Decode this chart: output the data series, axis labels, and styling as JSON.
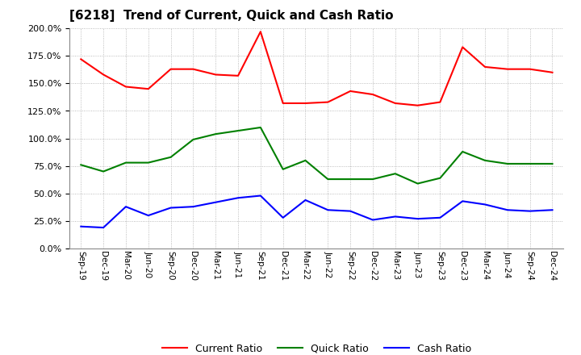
{
  "title": "[6218]  Trend of Current, Quick and Cash Ratio",
  "labels": [
    "Sep-19",
    "Dec-19",
    "Mar-20",
    "Jun-20",
    "Sep-20",
    "Dec-20",
    "Mar-21",
    "Jun-21",
    "Sep-21",
    "Dec-21",
    "Mar-22",
    "Jun-22",
    "Sep-22",
    "Dec-22",
    "Mar-23",
    "Jun-23",
    "Sep-23",
    "Dec-23",
    "Mar-24",
    "Jun-24",
    "Sep-24",
    "Dec-24"
  ],
  "current_ratio": [
    172,
    158,
    147,
    145,
    163,
    163,
    158,
    157,
    197,
    132,
    132,
    133,
    143,
    140,
    132,
    130,
    133,
    183,
    165,
    163,
    163,
    160
  ],
  "quick_ratio": [
    76,
    70,
    78,
    78,
    83,
    99,
    104,
    107,
    110,
    72,
    80,
    63,
    63,
    63,
    68,
    59,
    64,
    88,
    80,
    77,
    77,
    77
  ],
  "cash_ratio": [
    20,
    19,
    38,
    30,
    37,
    38,
    42,
    46,
    48,
    28,
    44,
    35,
    34,
    26,
    29,
    27,
    28,
    43,
    40,
    35,
    34,
    35
  ],
  "current_color": "#FF0000",
  "quick_color": "#008000",
  "cash_color": "#0000FF",
  "ylim": [
    0,
    200
  ],
  "yticks": [
    0,
    25,
    50,
    75,
    100,
    125,
    150,
    175,
    200
  ],
  "background_color": "#FFFFFF",
  "grid_color": "#AAAAAA"
}
